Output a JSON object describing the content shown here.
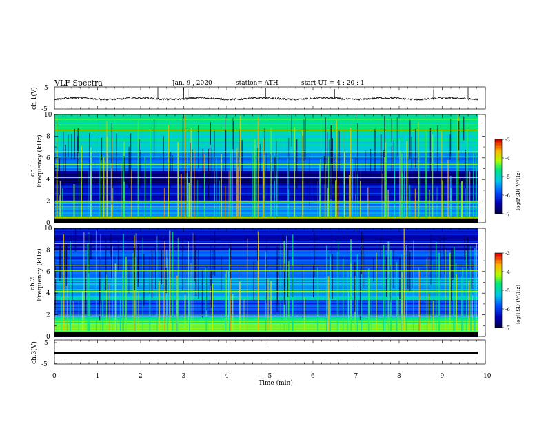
{
  "header": {
    "title": "VLF  Spectra",
    "date": "Jan. 9  , 2020",
    "station": "station= ATH",
    "start_ut": "start  UT  =   4  : 20 : 1"
  },
  "chart_data": [
    {
      "type": "line",
      "panel": "ch1-waveform",
      "ylabel": "ch.1(V)",
      "y_ticks": [
        "5",
        "-5"
      ],
      "ylim": [
        -5,
        5
      ],
      "xlim": [
        0,
        10
      ],
      "series": [
        {
          "values_note_minutes": [
            0,
            9.8
          ],
          "level": -0.3,
          "spikes_at_min": [
            2.4,
            3.0,
            3.1,
            4.9,
            6.5,
            8.6,
            8.8,
            9.6
          ]
        }
      ]
    },
    {
      "type": "heatmap",
      "panel": "ch1-spectrogram",
      "ylabel": "ch.1\nFrequency (kHz)",
      "ylabel_line1": "ch.1",
      "ylabel_line2": "Frequency (kHz)",
      "y_ticks": [
        "0",
        "2",
        "4",
        "6",
        "8",
        "10"
      ],
      "ylim": [
        0,
        10
      ],
      "xlim": [
        0,
        10
      ],
      "colorbar": {
        "label": "log(PSD)(V²/Hz)",
        "ticks": [
          "-3",
          "-4",
          "-5",
          "-6",
          "-7"
        ],
        "range": [
          -7,
          -3
        ]
      },
      "bands_khz": [
        {
          "from": 0,
          "to": 0.4,
          "level": -7
        },
        {
          "from": 0.4,
          "to": 0.6,
          "level": -3.8
        },
        {
          "from": 0.6,
          "to": 1.8,
          "level": -5.6
        },
        {
          "from": 1.8,
          "to": 2.1,
          "level": -5.0
        },
        {
          "from": 2.1,
          "to": 3.6,
          "level": -6.2
        },
        {
          "from": 3.6,
          "to": 4.9,
          "level": -6.7
        },
        {
          "from": 4.9,
          "to": 6.8,
          "level": -5.5
        },
        {
          "from": 6.8,
          "to": 8.2,
          "level": -5.0
        },
        {
          "from": 8.2,
          "to": 10,
          "level": -4.8
        }
      ]
    },
    {
      "type": "heatmap",
      "panel": "ch2-spectrogram",
      "ylabel_line1": "ch.2",
      "ylabel_line2": "Frequency (kHz)",
      "y_ticks": [
        "0",
        "2",
        "4",
        "6",
        "8",
        "10"
      ],
      "ylim": [
        0,
        10
      ],
      "xlim": [
        0,
        10
      ],
      "colorbar": {
        "label": "log(PSD)(V²/Hz)",
        "ticks": [
          "-3",
          "-4",
          "-5",
          "-6",
          "-7"
        ],
        "range": [
          -7,
          -3
        ]
      },
      "bands_khz": [
        {
          "from": 0,
          "to": 0.3,
          "level": -7
        },
        {
          "from": 0.3,
          "to": 0.9,
          "level": -4.2
        },
        {
          "from": 0.9,
          "to": 1.9,
          "level": -4.6
        },
        {
          "from": 1.9,
          "to": 3.4,
          "level": -5.9
        },
        {
          "from": 3.4,
          "to": 4.6,
          "level": -5.2
        },
        {
          "from": 4.6,
          "to": 6.0,
          "level": -5.4
        },
        {
          "from": 6.0,
          "to": 8.0,
          "level": -5.9
        },
        {
          "from": 8.0,
          "to": 10,
          "level": -6.3
        }
      ]
    },
    {
      "type": "line",
      "panel": "ch3-waveform",
      "ylabel": "ch.3(V)",
      "y_ticks": [
        "5",
        "-5"
      ],
      "ylim": [
        -5,
        5
      ],
      "xlim": [
        0,
        10
      ],
      "xlabel": "Time  (min)",
      "x_ticks": [
        "0",
        "1",
        "2",
        "3",
        "4",
        "5",
        "6",
        "7",
        "8",
        "9",
        "10"
      ],
      "series": [
        {
          "level": -1.8
        }
      ]
    }
  ]
}
